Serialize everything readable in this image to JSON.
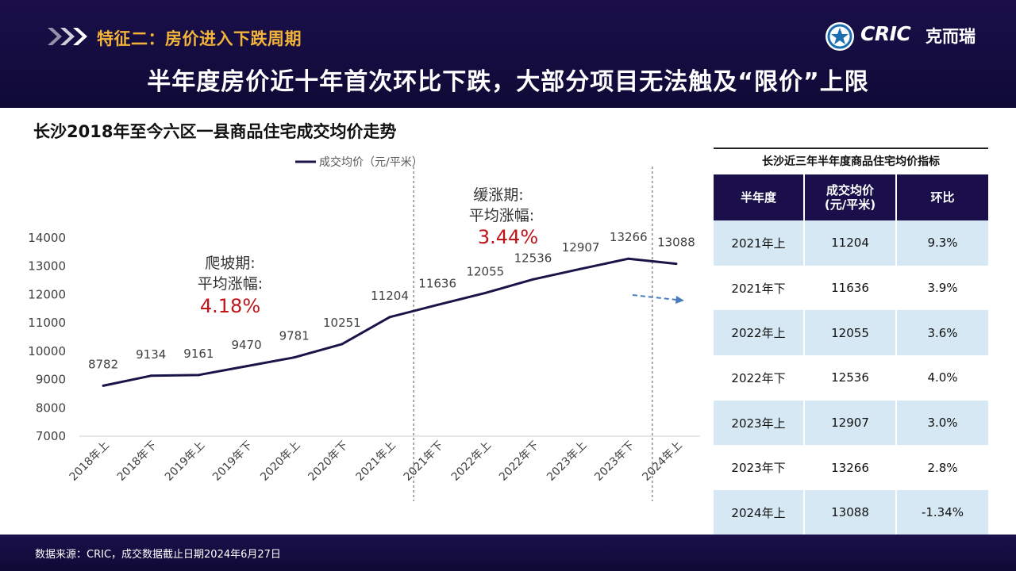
{
  "header": {
    "section_title": "特征二：房价进入下跌周期",
    "main_title": "半年度房价近十年首次环比下跌，大部分项目无法触及“限价”上限",
    "logo_text": "CRIC",
    "logo_cn": "克而瑞"
  },
  "chart_data": {
    "type": "line",
    "title": "长沙2018年至今六区一县商品住宅成交均价走势",
    "categories": [
      "2018年上",
      "2018年下",
      "2019年上",
      "2019年下",
      "2020年上",
      "2020年下",
      "2021年上",
      "2021年下",
      "2022年上",
      "2022年下",
      "2023年上",
      "2023年下",
      "2024年上"
    ],
    "series": [
      {
        "name": "成交均价（元/平米）",
        "values": [
          8782,
          9134,
          9161,
          9470,
          9781,
          10251,
          11204,
          11636,
          12055,
          12536,
          12907,
          13266,
          13088
        ],
        "color": "#1a1548"
      }
    ],
    "ylim": [
      7000,
      14000
    ],
    "yticks": [
      7000,
      8000,
      9000,
      10000,
      11000,
      12000,
      13000,
      14000
    ],
    "legend_position": "top",
    "annotations": {
      "phase1": {
        "line1": "爬坡期:",
        "line2": "平均涨幅:",
        "value": "4.18%"
      },
      "phase2": {
        "line1": "缓涨期:",
        "line2": "平均涨幅:",
        "value": "3.44%"
      }
    },
    "dividers_after_categories": [
      "2021年上",
      "2023年下"
    ],
    "highlight_color": "#c0141b",
    "trend_arrow_color": "#4a7cc0"
  },
  "table": {
    "caption": "长沙近三年半年度商品住宅均价指标",
    "headers": [
      "半年度",
      "成交均价\n(元/平米)",
      "环比"
    ],
    "header_col1": "半年度",
    "header_col2_line1": "成交均价",
    "header_col2_line2": "(元/平米)",
    "header_col3": "环比",
    "rows": [
      [
        "2021年上",
        "11204",
        "9.3%"
      ],
      [
        "2021年下",
        "11636",
        "3.9%"
      ],
      [
        "2022年上",
        "12055",
        "3.6%"
      ],
      [
        "2022年下",
        "12536",
        "4.0%"
      ],
      [
        "2023年上",
        "12907",
        "3.0%"
      ],
      [
        "2023年下",
        "13266",
        "2.8%"
      ],
      [
        "2024年上",
        "13088",
        "-1.34%"
      ]
    ]
  },
  "footer": {
    "source": "数据来源：CRIC，成交数据截止日期2024年6月27日"
  },
  "colors": {
    "header_bg": "#1a0f4a",
    "accent_gold": "#f3b43a",
    "table_shade": "#d5e8f4"
  }
}
